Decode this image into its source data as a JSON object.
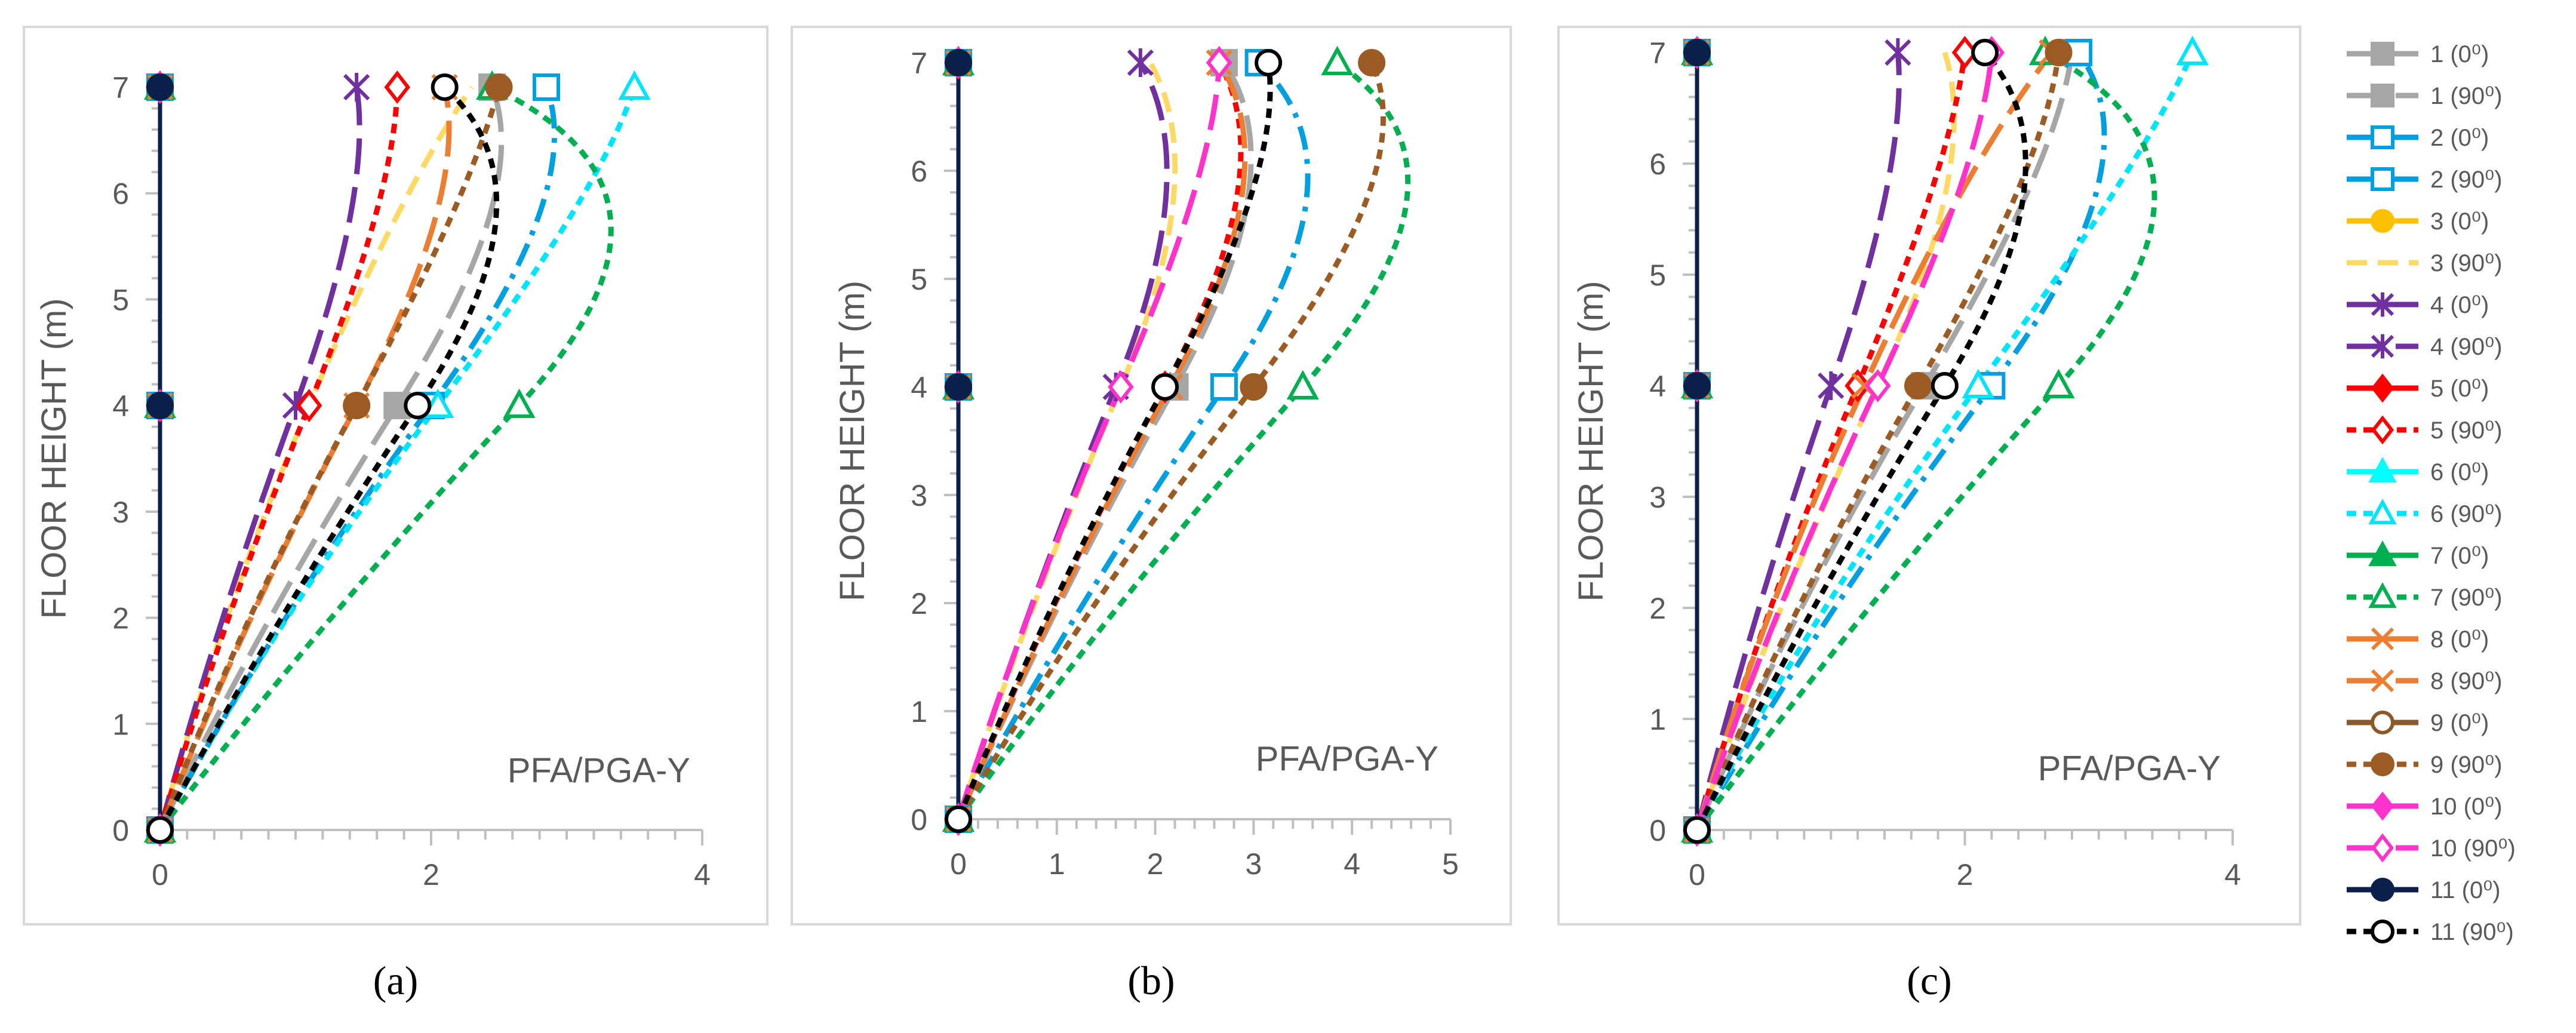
{
  "chart_data": [
    {
      "type": "line",
      "panel_label": "(a)",
      "annotation": "PFA/PGA-Y",
      "ylabel": "FLOOR HEIGHT (m)",
      "xlim": [
        0,
        4
      ],
      "ylim": [
        0,
        7
      ],
      "xticks": [
        0,
        2,
        4
      ],
      "yticks": [
        0,
        1,
        2,
        3,
        4,
        5,
        6,
        7
      ],
      "grid": false,
      "floors": [
        0,
        4,
        7
      ],
      "series": [
        {
          "name": "1 (0⁰)",
          "x": [
            0,
            0,
            0
          ]
        },
        {
          "name": "1 (90⁰)",
          "x": [
            0,
            1.75,
            2.45
          ]
        },
        {
          "name": "2 (0⁰)",
          "x": [
            0,
            0,
            0
          ]
        },
        {
          "name": "2 (90⁰)",
          "x": [
            0,
            2.0,
            2.85
          ]
        },
        {
          "name": "3 (0⁰)",
          "x": [
            0,
            0,
            0
          ]
        },
        {
          "name": "3 (90⁰)",
          "x": [
            0,
            1.1,
            2.3
          ]
        },
        {
          "name": "4 (0⁰)",
          "x": [
            0,
            0,
            0
          ]
        },
        {
          "name": "4 (90⁰)",
          "x": [
            0,
            1.0,
            1.45
          ]
        },
        {
          "name": "5 (0⁰)",
          "x": [
            0,
            0,
            0
          ]
        },
        {
          "name": "5 (90⁰)",
          "x": [
            0,
            1.1,
            1.75
          ]
        },
        {
          "name": "6 (0⁰)",
          "x": [
            0,
            0,
            0
          ]
        },
        {
          "name": "6 (90⁰)",
          "x": [
            0,
            2.05,
            3.5
          ]
        },
        {
          "name": "7 (0⁰)",
          "x": [
            0,
            0,
            0
          ]
        },
        {
          "name": "7 (90⁰)",
          "x": [
            0,
            2.65,
            2.45
          ]
        },
        {
          "name": "8 (0⁰)",
          "x": [
            0,
            0,
            0
          ]
        },
        {
          "name": "8 (90⁰)",
          "x": [
            0,
            1.45,
            2.1
          ]
        },
        {
          "name": "9 (0⁰)",
          "x": [
            0,
            0,
            0
          ]
        },
        {
          "name": "9 (90⁰)",
          "x": [
            0,
            1.45,
            2.5
          ]
        },
        {
          "name": "10 (0⁰)",
          "x": [
            0,
            0,
            0
          ]
        },
        {
          "name": "10 (90⁰)",
          "x": [
            0,
            0,
            0
          ]
        },
        {
          "name": "11 (0⁰)",
          "x": [
            0,
            0,
            0
          ]
        },
        {
          "name": "11 (90⁰)",
          "x": [
            0,
            1.9,
            2.1
          ]
        }
      ]
    },
    {
      "type": "line",
      "panel_label": "(b)",
      "annotation": "PFA/PGA-Y",
      "ylabel": "FLOOR HEIGHT (m)",
      "xlim": [
        0,
        5
      ],
      "ylim": [
        0,
        7
      ],
      "xticks": [
        0,
        1,
        2,
        3,
        4,
        5
      ],
      "yticks": [
        0,
        1,
        2,
        3,
        4,
        5,
        6,
        7
      ],
      "grid": false,
      "floors": [
        0,
        4,
        7
      ],
      "series": [
        {
          "name": "1 (0⁰)",
          "x": [
            0,
            0,
            0
          ]
        },
        {
          "name": "1 (90⁰)",
          "x": [
            0,
            2.2,
            2.7
          ]
        },
        {
          "name": "2 (0⁰)",
          "x": [
            0,
            0,
            0
          ]
        },
        {
          "name": "2 (90⁰)",
          "x": [
            0,
            2.7,
            3.05
          ]
        },
        {
          "name": "3 (0⁰)",
          "x": [
            0,
            0,
            0
          ]
        },
        {
          "name": "3 (90⁰)",
          "x": [
            0,
            1.65,
            1.95
          ]
        },
        {
          "name": "4 (0⁰)",
          "x": [
            0,
            0,
            0
          ]
        },
        {
          "name": "4 (90⁰)",
          "x": [
            0,
            1.6,
            1.85
          ]
        },
        {
          "name": "5 (0⁰)",
          "x": [
            0,
            0,
            0
          ]
        },
        {
          "name": "5 (90⁰)",
          "x": [
            0,
            2.1,
            2.65
          ]
        },
        {
          "name": "6 (0⁰)",
          "x": [
            0,
            0,
            0
          ]
        },
        {
          "name": "6 (90⁰)",
          "x": [
            0,
            0,
            0
          ]
        },
        {
          "name": "7 (0⁰)",
          "x": [
            0,
            0,
            0
          ]
        },
        {
          "name": "7 (90⁰)",
          "x": [
            0,
            3.5,
            3.85
          ]
        },
        {
          "name": "8 (0⁰)",
          "x": [
            0,
            0,
            0
          ]
        },
        {
          "name": "8 (90⁰)",
          "x": [
            0,
            2.15,
            2.65
          ]
        },
        {
          "name": "9 (0⁰)",
          "x": [
            0,
            0,
            0
          ]
        },
        {
          "name": "9 (90⁰)",
          "x": [
            0,
            3.0,
            4.2
          ]
        },
        {
          "name": "10 (0⁰)",
          "x": [
            0,
            0,
            0
          ]
        },
        {
          "name": "10 (90⁰)",
          "x": [
            0,
            1.65,
            2.65
          ]
        },
        {
          "name": "11 (0⁰)",
          "x": [
            0,
            0,
            0
          ]
        },
        {
          "name": "11 (90⁰)",
          "x": [
            0,
            2.1,
            3.15
          ]
        }
      ]
    },
    {
      "type": "line",
      "panel_label": "(c)",
      "annotation": "PFA/PGA-Y",
      "ylabel": "FLOOR HEIGHT (m)",
      "xlim": [
        0,
        4
      ],
      "ylim": [
        0,
        7
      ],
      "xticks": [
        0,
        2,
        4
      ],
      "yticks": [
        0,
        1,
        2,
        3,
        4,
        5,
        6,
        7
      ],
      "grid": false,
      "floors": [
        0,
        4,
        7
      ],
      "series": [
        {
          "name": "1 (0⁰)",
          "x": [
            0,
            0,
            0
          ]
        },
        {
          "name": "1 (90⁰)",
          "x": [
            0,
            1.7,
            2.8
          ]
        },
        {
          "name": "2 (0⁰)",
          "x": [
            0,
            0,
            0
          ]
        },
        {
          "name": "2 (90⁰)",
          "x": [
            0,
            2.2,
            2.85
          ]
        },
        {
          "name": "3 (0⁰)",
          "x": [
            0,
            0,
            0
          ]
        },
        {
          "name": "3 (90⁰)",
          "x": [
            0,
            1.35,
            1.85
          ]
        },
        {
          "name": "4 (0⁰)",
          "x": [
            0,
            0,
            0
          ]
        },
        {
          "name": "4 (90⁰)",
          "x": [
            0,
            1.0,
            1.5
          ]
        },
        {
          "name": "5 (0⁰)",
          "x": [
            0,
            0,
            0
          ]
        },
        {
          "name": "5 (90⁰)",
          "x": [
            0,
            1.2,
            2.0
          ]
        },
        {
          "name": "6 (0⁰)",
          "x": [
            0,
            0,
            0
          ]
        },
        {
          "name": "6 (90⁰)",
          "x": [
            0,
            2.1,
            3.7
          ]
        },
        {
          "name": "7 (0⁰)",
          "x": [
            0,
            0,
            0
          ]
        },
        {
          "name": "7 (90⁰)",
          "x": [
            0,
            2.7,
            2.6
          ]
        },
        {
          "name": "8 (0⁰)",
          "x": [
            0,
            0,
            0
          ]
        },
        {
          "name": "8 (90⁰)",
          "x": [
            0,
            1.25,
            2.65
          ]
        },
        {
          "name": "9 (0⁰)",
          "x": [
            0,
            0,
            0
          ]
        },
        {
          "name": "9 (90⁰)",
          "x": [
            0,
            1.65,
            2.7
          ]
        },
        {
          "name": "10 (0⁰)",
          "x": [
            0,
            0,
            0
          ]
        },
        {
          "name": "10 (90⁰)",
          "x": [
            0,
            1.35,
            2.2
          ]
        },
        {
          "name": "11 (0⁰)",
          "x": [
            0,
            0,
            0
          ]
        },
        {
          "name": "11 (90⁰)",
          "x": [
            0,
            1.85,
            2.15
          ]
        }
      ]
    }
  ],
  "legend": {
    "placement": "right",
    "entries": [
      {
        "label": "1 (0⁰)",
        "color": "#a6a6a6",
        "dash": "solid",
        "marker": "square-filled"
      },
      {
        "label": "1 (90⁰)",
        "color": "#a6a6a6",
        "dash": "long-dash",
        "marker": "square-filled"
      },
      {
        "label": "2 (0⁰)",
        "color": "#00a0e0",
        "dash": "solid",
        "marker": "square-open"
      },
      {
        "label": "2 (90⁰)",
        "color": "#00a0e0",
        "dash": "dash-dot",
        "marker": "square-open"
      },
      {
        "label": "3 (0⁰)",
        "color": "#ffc000",
        "dash": "solid",
        "marker": "circle-filled"
      },
      {
        "label": "3 (90⁰)",
        "color": "#ffd966",
        "dash": "dash",
        "marker": "none"
      },
      {
        "label": "4 (0⁰)",
        "color": "#7030a0",
        "dash": "solid",
        "marker": "asterisk"
      },
      {
        "label": "4 (90⁰)",
        "color": "#7030a0",
        "dash": "long-dash",
        "marker": "asterisk"
      },
      {
        "label": "5 (0⁰)",
        "color": "#ff0000",
        "dash": "solid",
        "marker": "diamond-filled"
      },
      {
        "label": "5 (90⁰)",
        "color": "#ff0000",
        "dash": "short-dash",
        "marker": "diamond-open"
      },
      {
        "label": "6 (0⁰)",
        "color": "#00ffff",
        "dash": "solid",
        "marker": "triangle-filled"
      },
      {
        "label": "6 (90⁰)",
        "color": "#00e5ff",
        "dash": "short-dash",
        "marker": "triangle-open"
      },
      {
        "label": "7 (0⁰)",
        "color": "#00b050",
        "dash": "solid",
        "marker": "triangle-filled"
      },
      {
        "label": "7 (90⁰)",
        "color": "#00b050",
        "dash": "short-dash",
        "marker": "triangle-open"
      },
      {
        "label": "8 (0⁰)",
        "color": "#ed7d31",
        "dash": "solid",
        "marker": "cross"
      },
      {
        "label": "8 (90⁰)",
        "color": "#ed7d31",
        "dash": "long-dash",
        "marker": "cross"
      },
      {
        "label": "9 (0⁰)",
        "color": "#8b5a2b",
        "dash": "solid",
        "marker": "circle-open"
      },
      {
        "label": "9 (90⁰)",
        "color": "#9c5b22",
        "dash": "short-dash",
        "marker": "circle-filled"
      },
      {
        "label": "10 (0⁰)",
        "color": "#ff33cc",
        "dash": "solid",
        "marker": "diamond-filled"
      },
      {
        "label": "10 (90⁰)",
        "color": "#ff33cc",
        "dash": "long-dash",
        "marker": "diamond-open"
      },
      {
        "label": "11 (0⁰)",
        "color": "#0b1f4b",
        "dash": "solid",
        "marker": "circle-filled-black"
      },
      {
        "label": "11 (90⁰)",
        "color": "#000000",
        "dash": "short-dash",
        "marker": "circle-open-black"
      }
    ]
  }
}
